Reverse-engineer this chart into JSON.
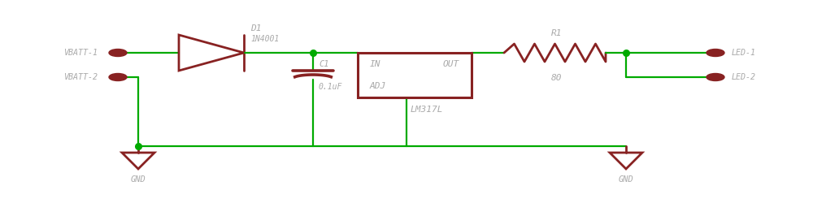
{
  "bg_color": "#ffffff",
  "wire_color": "#00aa00",
  "comp_color": "#882222",
  "label_color": "#aaaaaa",
  "junction_color": "#00aa00",
  "figsize": [
    10.0,
    2.5
  ],
  "dpi": 100,
  "xlim": [
    0,
    100
  ],
  "ylim": [
    0,
    25
  ],
  "y_top": 18.5,
  "y_vbatt2": 15.5,
  "y_bot": 7.0,
  "x_vbatt_pin": 14.5,
  "x_diode_l": 22.0,
  "x_diode_r": 30.0,
  "x_cap": 38.5,
  "x_ic_l": 44.0,
  "x_ic_r": 58.0,
  "x_adj": 50.0,
  "x_res_l": 62.0,
  "x_res_r": 74.5,
  "x_led_node": 77.0,
  "x_led_pin": 88.0,
  "x_gnd1": 17.0,
  "x_gnd2": 77.0
}
